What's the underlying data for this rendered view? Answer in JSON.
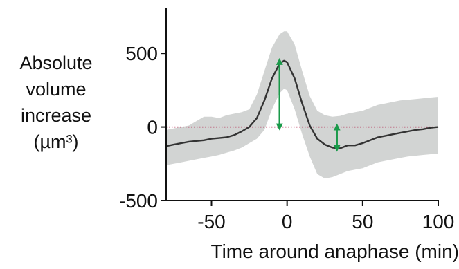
{
  "chart_data": {
    "type": "line",
    "title": "",
    "xlabel": "Time around anaphase (min)",
    "ylabel_lines": [
      "Absolute",
      "volume",
      "increase"
    ],
    "ylabel_unit": "(µm³)",
    "xlim": [
      -80,
      100
    ],
    "ylim": [
      -500,
      750
    ],
    "xticks": [
      -50,
      0,
      50,
      100
    ],
    "yticks": [
      -500,
      0,
      500
    ],
    "x_tick_labels": [
      "-50",
      "0",
      "50",
      "100"
    ],
    "y_tick_labels": [
      "-500",
      "0",
      "500"
    ],
    "grid": false,
    "legend": "none",
    "reference_line": {
      "y": 0,
      "style": "dotted",
      "color": "#b0204a"
    },
    "series": [
      {
        "kind": "mean",
        "color": "#333333",
        "x": [
          -80,
          -75,
          -70,
          -65,
          -60,
          -55,
          -50,
          -45,
          -40,
          -35,
          -30,
          -25,
          -20,
          -15,
          -10,
          -5,
          -2,
          0,
          5,
          10,
          15,
          20,
          25,
          30,
          35,
          40,
          45,
          50,
          55,
          60,
          65,
          70,
          75,
          80,
          85,
          90,
          95,
          100
        ],
        "y": [
          -130,
          -120,
          -110,
          -100,
          -95,
          -90,
          -80,
          -75,
          -70,
          -55,
          -30,
          0,
          60,
          180,
          330,
          430,
          450,
          440,
          330,
          160,
          10,
          -80,
          -120,
          -140,
          -145,
          -125,
          -125,
          -110,
          -90,
          -70,
          -60,
          -50,
          -40,
          -30,
          -20,
          -15,
          -5,
          0
        ]
      },
      {
        "kind": "sd_band",
        "color": "#d2d4d3",
        "x": [
          -80,
          -75,
          -70,
          -65,
          -60,
          -55,
          -50,
          -45,
          -40,
          -35,
          -30,
          -25,
          -20,
          -15,
          -10,
          -5,
          -2,
          0,
          5,
          10,
          15,
          20,
          25,
          30,
          35,
          40,
          45,
          50,
          55,
          60,
          65,
          70,
          75,
          80,
          85,
          90,
          95,
          100
        ],
        "upper": [
          -20,
          -10,
          0,
          10,
          40,
          70,
          70,
          60,
          80,
          90,
          100,
          120,
          220,
          380,
          540,
          630,
          650,
          650,
          560,
          380,
          210,
          110,
          80,
          70,
          75,
          90,
          100,
          110,
          130,
          150,
          160,
          170,
          180,
          185,
          190,
          195,
          200,
          205
        ],
        "lower": [
          -260,
          -250,
          -240,
          -230,
          -220,
          -210,
          -200,
          -190,
          -175,
          -160,
          -140,
          -110,
          -80,
          -20,
          120,
          230,
          260,
          250,
          120,
          -50,
          -200,
          -320,
          -350,
          -340,
          -320,
          -300,
          -290,
          -280,
          -260,
          -240,
          -230,
          -220,
          -210,
          -200,
          -195,
          -190,
          -185,
          -180
        ]
      }
    ],
    "annotations": [
      {
        "type": "double-arrow",
        "x": -5,
        "y_from": 0,
        "y_to": 445,
        "color": "#1a9a4a"
      },
      {
        "type": "double-arrow",
        "x": 33,
        "y_from": 0,
        "y_to": -145,
        "color": "#1a9a4a"
      }
    ]
  }
}
